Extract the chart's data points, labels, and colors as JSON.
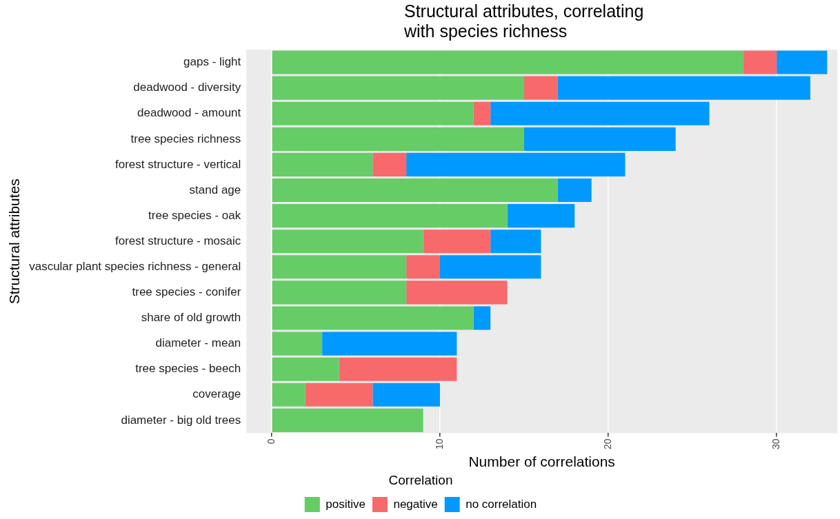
{
  "chart_data": {
    "type": "bar",
    "orientation": "horizontal",
    "stacked": true,
    "title": "Structural attributes, correlating with species richness",
    "xlabel": "Number of correlations",
    "ylabel": "Structural attributes",
    "legend_title": "Correlation",
    "categories": [
      "gaps - light",
      "deadwood - diversity",
      "deadwood - amount",
      "tree species richness",
      "forest structure - vertical",
      "stand age",
      "tree species - oak",
      "forest structure - mosaic",
      "vascular plant species richness - general",
      "tree species - conifer",
      "share of old growth",
      "diameter - mean",
      "tree species - beech",
      "coverage",
      "diameter - big old trees"
    ],
    "series": [
      {
        "name": "positive",
        "color": "#66cc66",
        "values": [
          28,
          15,
          12,
          15,
          6,
          17,
          14,
          9,
          8,
          8,
          12,
          3,
          4,
          2,
          9
        ]
      },
      {
        "name": "negative",
        "color": "#f8696b",
        "values": [
          2,
          2,
          1,
          0,
          2,
          0,
          0,
          4,
          2,
          6,
          0,
          0,
          7,
          4,
          0
        ]
      },
      {
        "name": "no correlation",
        "color": "#0099ff",
        "values": [
          3,
          15,
          13,
          9,
          13,
          2,
          4,
          3,
          6,
          0,
          1,
          8,
          0,
          4,
          0
        ]
      }
    ],
    "xlim": [
      -1.5,
      33.6
    ],
    "xticks": [
      0,
      10,
      20,
      30
    ],
    "grid": "x",
    "legend": "bottom"
  }
}
